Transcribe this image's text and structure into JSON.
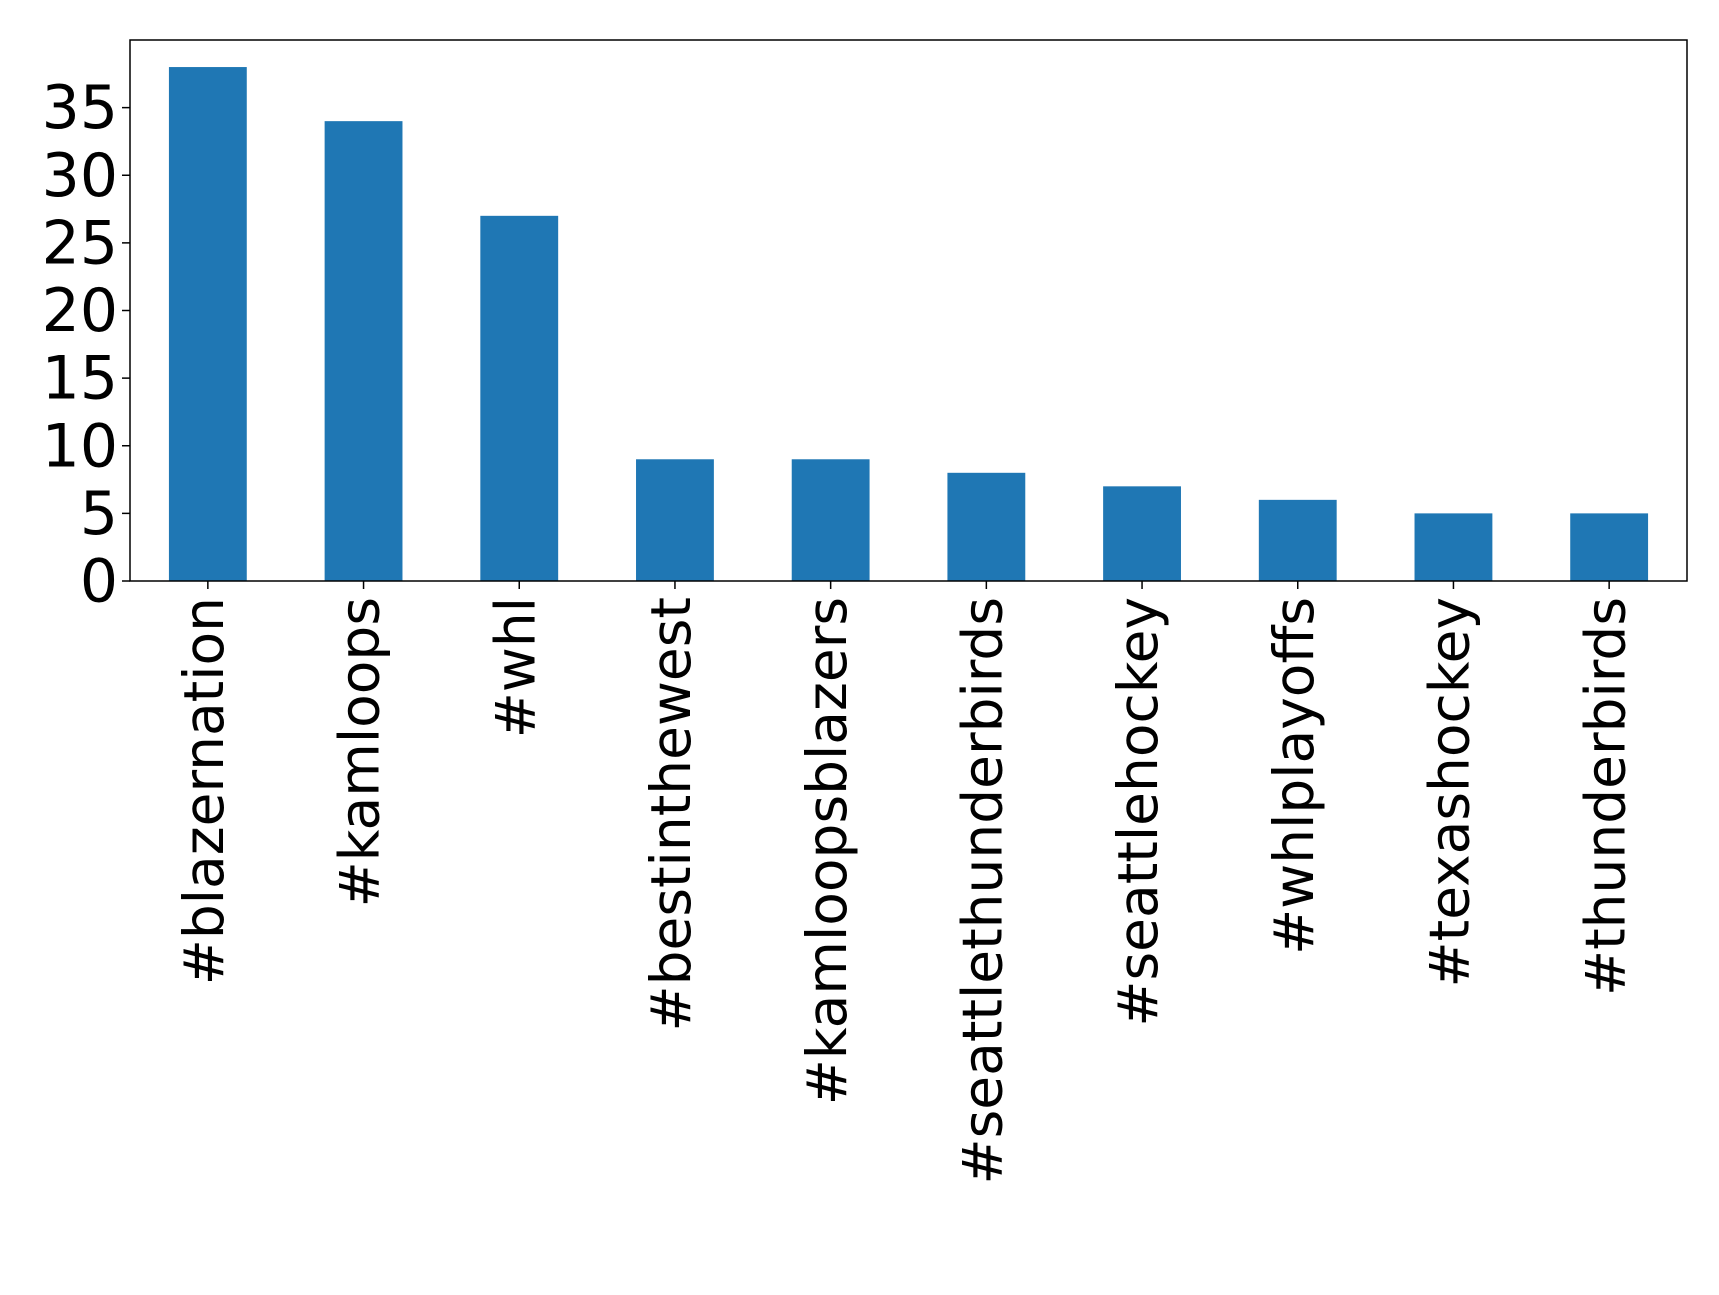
{
  "chart_data": {
    "type": "bar",
    "categories": [
      "#blazernation",
      "#kamloops",
      "#whl",
      "#bestinthewest",
      "#kamloopsblazers",
      "#seattlethunderbirds",
      "#seattlehockey",
      "#whlplayoffs",
      "#texashockey",
      "#thunderbirds"
    ],
    "values": [
      38,
      34,
      27,
      9,
      9,
      8,
      7,
      6,
      5,
      5
    ],
    "color": "#1f77b4",
    "ylim": [
      0,
      40
    ],
    "yticks": [
      0,
      5,
      10,
      15,
      20,
      25,
      30,
      35
    ],
    "grid": false
  }
}
